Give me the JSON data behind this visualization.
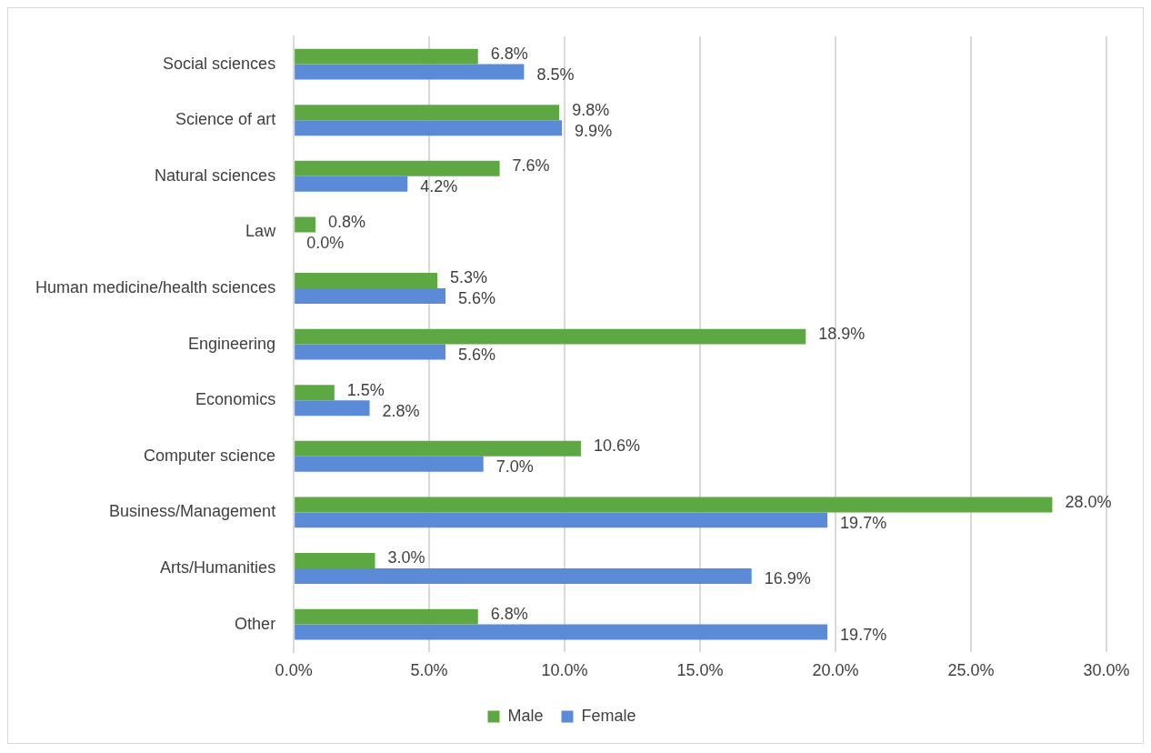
{
  "chart_data": {
    "type": "bar",
    "orientation": "horizontal",
    "categories": [
      "Social sciences",
      "Science of art",
      "Natural sciences",
      "Law",
      "Human medicine/health sciences",
      "Engineering",
      "Economics",
      "Computer science",
      "Business/Management",
      "Arts/Humanities",
      "Other"
    ],
    "series": [
      {
        "name": "Male",
        "color": "#5ea843",
        "values": [
          6.8,
          9.8,
          7.6,
          0.8,
          5.3,
          18.9,
          1.5,
          10.6,
          28.0,
          3.0,
          6.8
        ],
        "value_labels": [
          "6.8%",
          "9.8%",
          "7.6%",
          "0.8%",
          "5.3%",
          "18.9%",
          "1.5%",
          "10.6%",
          "28.0%",
          "3.0%",
          "6.8%"
        ]
      },
      {
        "name": "Female",
        "color": "#5b8bd6",
        "values": [
          8.5,
          9.9,
          4.2,
          0.0,
          5.6,
          5.6,
          2.8,
          7.0,
          19.7,
          16.9,
          19.7
        ],
        "value_labels": [
          "8.5%",
          "9.9%",
          "4.2%",
          "0.0%",
          "5.6%",
          "5.6%",
          "2.8%",
          "7.0%",
          "19.7%",
          "16.9%",
          "19.7%"
        ]
      }
    ],
    "xlim": [
      0,
      30
    ],
    "xticks": [
      {
        "value": 0,
        "label": "0.0%"
      },
      {
        "value": 5,
        "label": "5.0%"
      },
      {
        "value": 10,
        "label": "10.0%"
      },
      {
        "value": 15,
        "label": "15.0%"
      },
      {
        "value": 20,
        "label": "20.0%"
      },
      {
        "value": 25,
        "label": "25.0%"
      },
      {
        "value": 30,
        "label": "30.0%"
      }
    ],
    "grid": "x",
    "legend": "bottom"
  }
}
